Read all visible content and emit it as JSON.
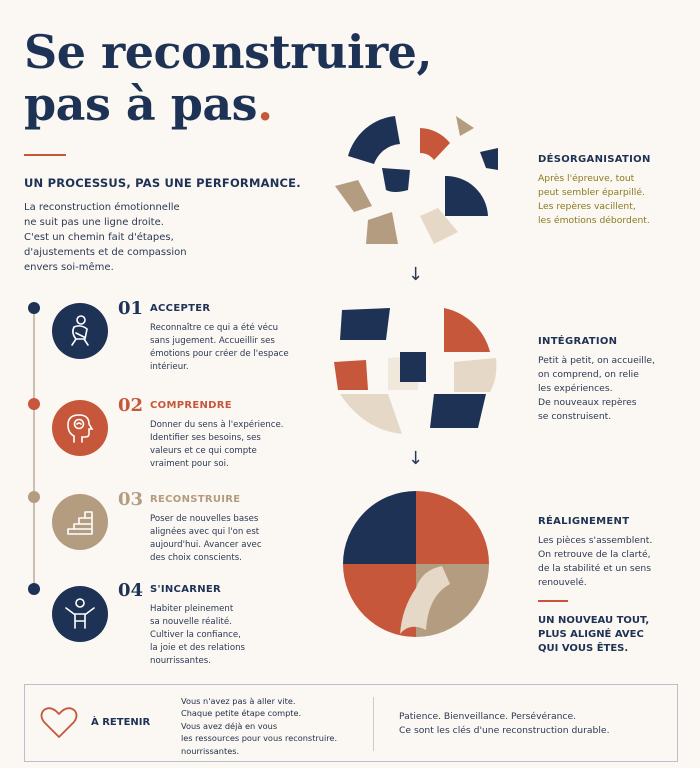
{
  "title": {
    "line1": "Se reconstruire,",
    "line2": "pas à pas",
    "dot": "."
  },
  "subtitle": "UN PROCESSUS, PAS UNE PERFORMANCE.",
  "intro": [
    "La reconstruction émotionnelle",
    "ne suit pas une ligne droite.",
    "C'est un chemin fait d'étapes,",
    "d'ajustements et de compassion",
    "envers soi-même."
  ],
  "steps": [
    {
      "num": "01",
      "name": "ACCEPTER",
      "icon": "person-hugging-icon",
      "color": "#1d3255",
      "lines": [
        "Reconnaître ce qui a été vécu",
        "sans jugement. Accueillir ses",
        "émotions pour créer de l'espace",
        "intérieur."
      ]
    },
    {
      "num": "02",
      "name": "COMPRENDRE",
      "icon": "head-brain-icon",
      "color": "#c7573b",
      "lines": [
        "Donner du sens à l'expérience.",
        "Identifier ses besoins, ses",
        "valeurs et ce qui compte",
        "vraiment pour soi."
      ]
    },
    {
      "num": "03",
      "name": "RECONSTRUIRE",
      "icon": "stairs-icon",
      "color": "#b49c80",
      "lines": [
        "Poser de nouvelles bases",
        "alignées avec qui l'on est",
        "aujourd'hui. Avancer avec",
        "des choix conscients."
      ]
    },
    {
      "num": "04",
      "name": "S'INCARNER",
      "icon": "person-open-arms-icon",
      "color": "#1d3255",
      "lines": [
        "Habiter pleinement",
        "sa nouvelle réalité.",
        "Cultiver la confiance,",
        "la joie et des relations",
        "nourrissantes."
      ]
    }
  ],
  "phases": [
    {
      "name": "DÉSORGANISATION",
      "color": "#8a7a20",
      "lines": [
        "Après l'épreuve, tout",
        "peut sembler éparpillé.",
        "Les repères vacillent,",
        "les émotions débordent."
      ]
    },
    {
      "name": "INTÉGRATION",
      "color": "#2b3a55",
      "lines": [
        "Petit à petit, on accueille,",
        "on comprend, on relie",
        "les expériences.",
        "De nouveaux repères",
        "se construisent."
      ]
    },
    {
      "name": "RÉALIGNEMENT",
      "color": "#2b3a55",
      "lines": [
        "Les pièces s'assemblent.",
        "On retrouve de la clarté,",
        "de la stabilité et un sens",
        "renouvelé."
      ]
    }
  ],
  "arrows": [
    "↓",
    "↓"
  ],
  "final": [
    "UN NOUVEAU TOUT,",
    "PLUS ALIGNÉ AVEC",
    "QUI VOUS ÊTES."
  ],
  "retenir": {
    "label": "À RETENIR",
    "icon": "heart-icon",
    "left": [
      "Vous n'avez pas à aller vite.",
      "Chaque petite étape compte.",
      "Vous avez déjà en vous",
      "les ressources pour vous reconstruire.",
      "nourrissantes."
    ],
    "right": [
      "Patience. Bienveillance. Persévérance.",
      "Ce sont les clés d'une reconstruction durable."
    ]
  },
  "colors": {
    "navy": "#1d3255",
    "terracotta": "#c7573b",
    "sand": "#b49c80",
    "cream": "#e6d8c6",
    "background": "#fbf7f2"
  }
}
